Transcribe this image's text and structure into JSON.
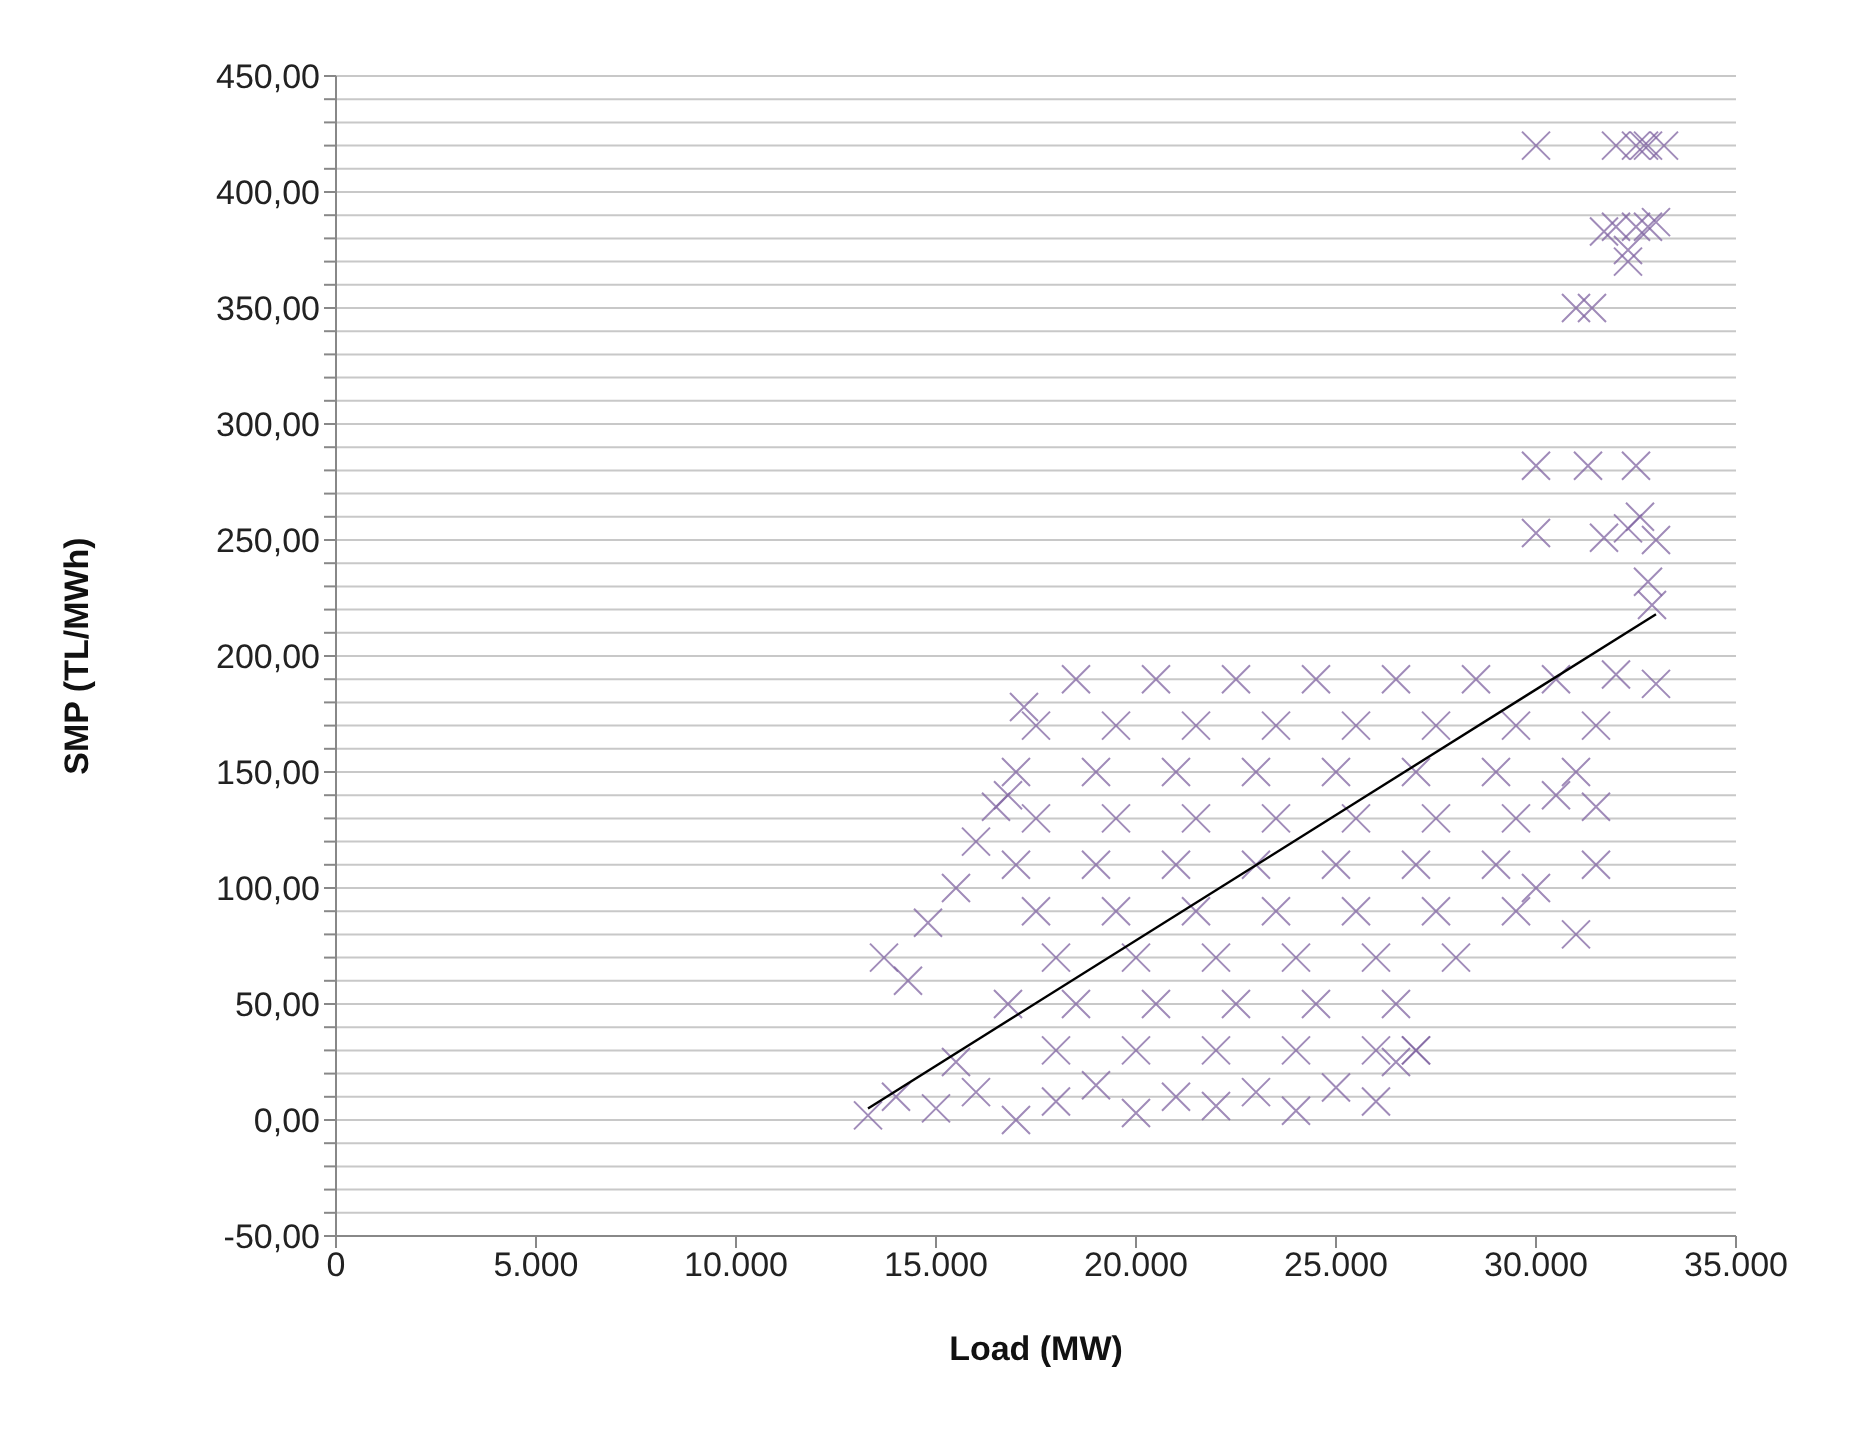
{
  "chart_data": {
    "type": "scatter",
    "xlabel": "Load (MW)",
    "ylabel": "SMP (TL/MWh)",
    "xlim": [
      0,
      35000
    ],
    "xticks": [
      0,
      {
        "value": 5000,
        "label": "5.000"
      },
      {
        "value": 10000,
        "label": "10.000"
      },
      {
        "value": 15000,
        "label": "15.000"
      },
      {
        "value": 20000,
        "label": "20.000"
      },
      {
        "value": 25000,
        "label": "25.000"
      },
      {
        "value": 30000,
        "label": "30.000"
      },
      {
        "value": 35000,
        "label": "35.000"
      }
    ],
    "ylim": [
      -50,
      450
    ],
    "yticks": [
      {
        "value": -50,
        "label": "-50,00"
      },
      {
        "value": -40,
        "label": null
      },
      {
        "value": -30,
        "label": null
      },
      {
        "value": -20,
        "label": null
      },
      {
        "value": -10,
        "label": null
      },
      {
        "value": 0,
        "label": "0,00"
      },
      {
        "value": 10,
        "label": null
      },
      {
        "value": 20,
        "label": null
      },
      {
        "value": 30,
        "label": null
      },
      {
        "value": 40,
        "label": null
      },
      {
        "value": 50,
        "label": "50,00"
      },
      {
        "value": 60,
        "label": null
      },
      {
        "value": 70,
        "label": null
      },
      {
        "value": 80,
        "label": null
      },
      {
        "value": 90,
        "label": null
      },
      {
        "value": 100,
        "label": "100,00"
      },
      {
        "value": 110,
        "label": null
      },
      {
        "value": 120,
        "label": null
      },
      {
        "value": 130,
        "label": null
      },
      {
        "value": 140,
        "label": null
      },
      {
        "value": 150,
        "label": "150,00"
      },
      {
        "value": 160,
        "label": null
      },
      {
        "value": 170,
        "label": null
      },
      {
        "value": 180,
        "label": null
      },
      {
        "value": 190,
        "label": null
      },
      {
        "value": 200,
        "label": "200,00"
      },
      {
        "value": 210,
        "label": null
      },
      {
        "value": 220,
        "label": null
      },
      {
        "value": 230,
        "label": null
      },
      {
        "value": 240,
        "label": null
      },
      {
        "value": 250,
        "label": "250,00"
      },
      {
        "value": 260,
        "label": null
      },
      {
        "value": 270,
        "label": null
      },
      {
        "value": 280,
        "label": null
      },
      {
        "value": 290,
        "label": null
      },
      {
        "value": 300,
        "label": "300,00"
      },
      {
        "value": 310,
        "label": null
      },
      {
        "value": 320,
        "label": null
      },
      {
        "value": 330,
        "label": null
      },
      {
        "value": 340,
        "label": null
      },
      {
        "value": 350,
        "label": "350,00"
      },
      {
        "value": 360,
        "label": null
      },
      {
        "value": 370,
        "label": null
      },
      {
        "value": 380,
        "label": null
      },
      {
        "value": 390,
        "label": null
      },
      {
        "value": 400,
        "label": "400,00"
      },
      {
        "value": 410,
        "label": null
      },
      {
        "value": 420,
        "label": null
      },
      {
        "value": 430,
        "label": null
      },
      {
        "value": 440,
        "label": null
      },
      {
        "value": 450,
        "label": "450,00"
      }
    ],
    "grid": "y",
    "legend": false,
    "marker": "cross",
    "series": [
      {
        "color": "#8064a2",
        "x": [
          30000,
          32000,
          32500,
          32800,
          33200,
          32700,
          31700,
          32000,
          32500,
          32800,
          33000,
          32300,
          32300,
          31000,
          31400,
          30000,
          31300,
          32500,
          30000,
          31700,
          32300,
          32600,
          33000,
          32800,
          32900,
          13300,
          14000,
          15000,
          16000,
          17000,
          18000,
          19000,
          20000,
          21000,
          22000,
          23000,
          24000,
          25000,
          26000,
          15500,
          26500,
          27000,
          13700,
          14300,
          14800,
          15500,
          16000,
          16500,
          17200,
          16800,
          16800,
          18500,
          20500,
          22500,
          24500,
          26500,
          28500,
          30500,
          32000,
          33000,
          17500,
          19500,
          21500,
          23500,
          25500,
          27500,
          29500,
          31500,
          17000,
          19000,
          21000,
          23000,
          25000,
          27000,
          29000,
          31000,
          17500,
          19500,
          21500,
          23500,
          25500,
          27500,
          29500,
          17000,
          19000,
          21000,
          23000,
          25000,
          27000,
          29000,
          17500,
          19500,
          21500,
          23500,
          25500,
          27500,
          29500,
          18000,
          20000,
          22000,
          24000,
          26000,
          28000,
          18500,
          20500,
          22500,
          24500,
          26500,
          18000,
          20000,
          22000,
          24000,
          26000,
          27000,
          30000,
          31000,
          31500,
          31500,
          30500
        ],
        "values": [
          420,
          420,
          420,
          420,
          420,
          420,
          383,
          385,
          385,
          385,
          387,
          375,
          370,
          350,
          350,
          282,
          282,
          282,
          253,
          251,
          255,
          260,
          250,
          232,
          222,
          2,
          10,
          5,
          12,
          0,
          8,
          15,
          3,
          10,
          6,
          12,
          4,
          14,
          8,
          25,
          25,
          30,
          70,
          60,
          85,
          100,
          120,
          135,
          178,
          50,
          140,
          190,
          190,
          190,
          190,
          190,
          190,
          190,
          192,
          188,
          170,
          170,
          170,
          170,
          170,
          170,
          170,
          170,
          150,
          150,
          150,
          150,
          150,
          150,
          150,
          150,
          130,
          130,
          130,
          130,
          130,
          130,
          130,
          110,
          110,
          110,
          110,
          110,
          110,
          110,
          90,
          90,
          90,
          90,
          90,
          90,
          90,
          70,
          70,
          70,
          70,
          70,
          70,
          50,
          50,
          50,
          50,
          50,
          30,
          30,
          30,
          30,
          30,
          30,
          100,
          80,
          110,
          135,
          140
        ]
      },
      {
        "type": "line",
        "color": "#000000",
        "marker": "none",
        "x": [
          13300,
          33000
        ],
        "values": [
          5,
          218
        ]
      }
    ]
  }
}
